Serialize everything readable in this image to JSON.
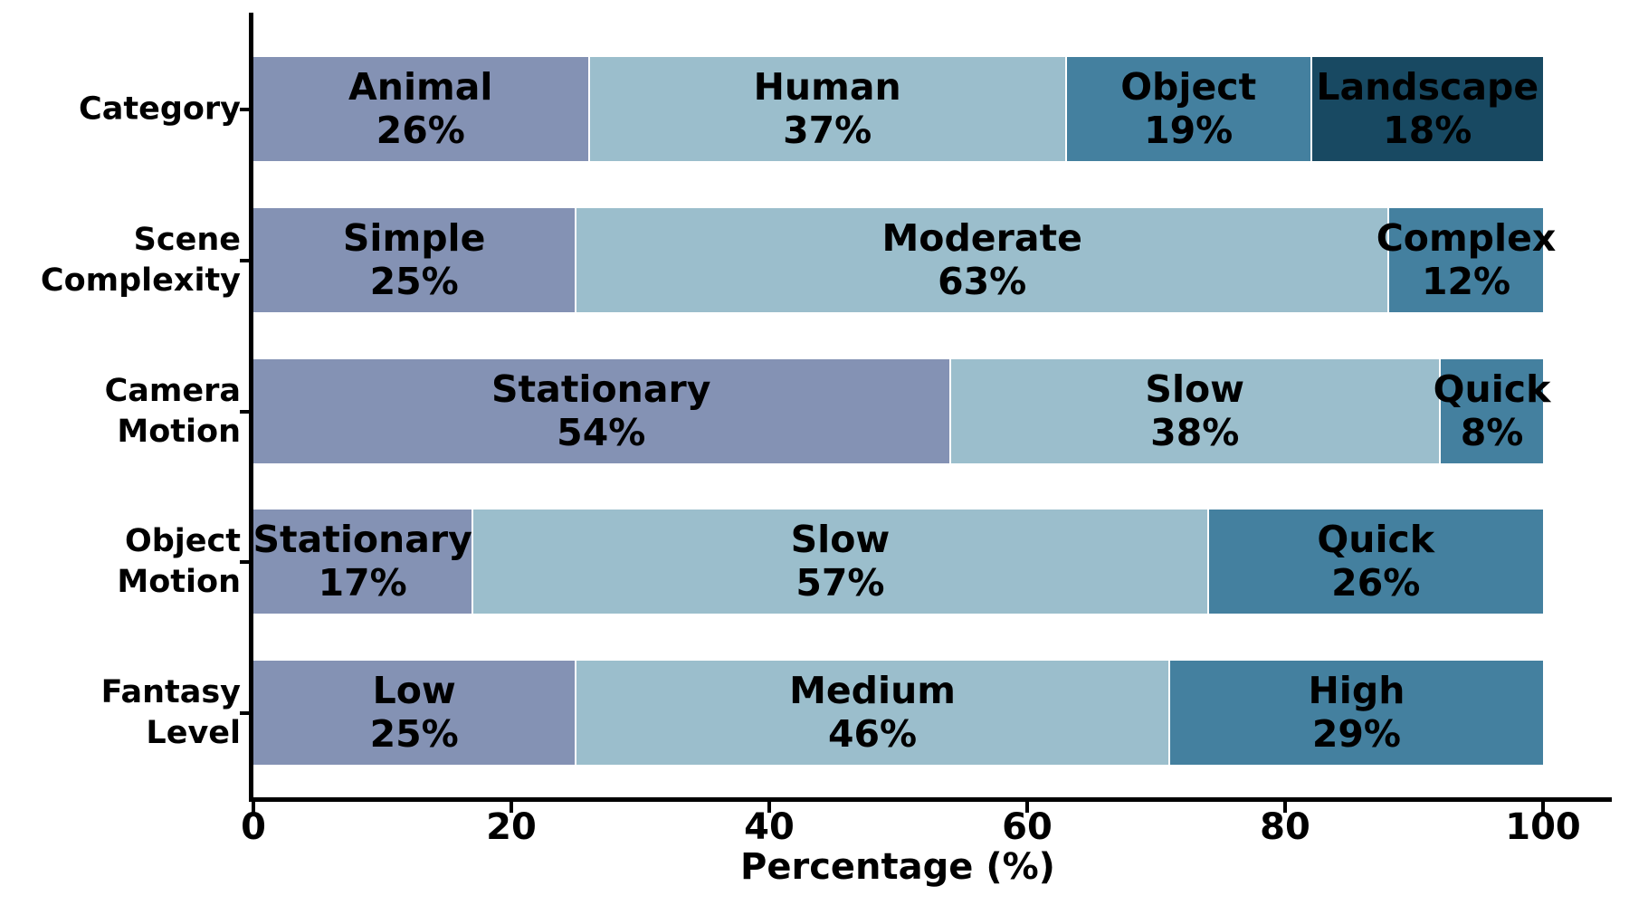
{
  "chart_data": {
    "type": "bar",
    "variant": "horizontal_stacked_percentage",
    "title": "",
    "xlabel": "Percentage (%)",
    "xlim": [
      0,
      105.3
    ],
    "xticks": [
      0,
      20,
      40,
      60,
      80,
      100
    ],
    "grid": false,
    "legend_position": "none (labels rendered inside segments)",
    "value_suffix": "%",
    "colors": {
      "segment_1": "#8492B4",
      "segment_2": "#9BBECC",
      "segment_3": "#44809F",
      "segment_4": "#184962",
      "label_text": "#000000",
      "axis": "#000000",
      "separator": "#FFFFFF"
    },
    "rows": [
      {
        "label": "Category",
        "label_lines": [
          "Category"
        ],
        "segments": [
          {
            "name": "Animal",
            "value": 26,
            "color": "#8492B4"
          },
          {
            "name": "Human",
            "value": 37,
            "color": "#9BBECC"
          },
          {
            "name": "Object",
            "value": 19,
            "color": "#44809F"
          },
          {
            "name": "Landscape",
            "value": 18,
            "color": "#184962"
          }
        ]
      },
      {
        "label": "Scene Complexity",
        "label_lines": [
          "Scene",
          "Complexity"
        ],
        "segments": [
          {
            "name": "Simple",
            "value": 25,
            "color": "#8492B4"
          },
          {
            "name": "Moderate",
            "value": 63,
            "color": "#9BBECC"
          },
          {
            "name": "Complex",
            "value": 12,
            "color": "#44809F"
          }
        ]
      },
      {
        "label": "Camera Motion",
        "label_lines": [
          "Camera",
          "Motion"
        ],
        "segments": [
          {
            "name": "Stationary",
            "value": 54,
            "color": "#8492B4"
          },
          {
            "name": "Slow",
            "value": 38,
            "color": "#9BBECC"
          },
          {
            "name": "Quick",
            "value": 8,
            "color": "#44809F"
          }
        ]
      },
      {
        "label": "Object Motion",
        "label_lines": [
          "Object",
          "Motion"
        ],
        "segments": [
          {
            "name": "Stationary",
            "value": 17,
            "color": "#8492B4"
          },
          {
            "name": "Slow",
            "value": 57,
            "color": "#9BBECC"
          },
          {
            "name": "Quick",
            "value": 26,
            "color": "#44809F"
          }
        ]
      },
      {
        "label": "Fantasy Level",
        "label_lines": [
          "Fantasy",
          "Level"
        ],
        "segments": [
          {
            "name": "Low",
            "value": 25,
            "color": "#8492B4"
          },
          {
            "name": "Medium",
            "value": 46,
            "color": "#9BBECC"
          },
          {
            "name": "High",
            "value": 29,
            "color": "#44809F"
          }
        ]
      }
    ]
  }
}
